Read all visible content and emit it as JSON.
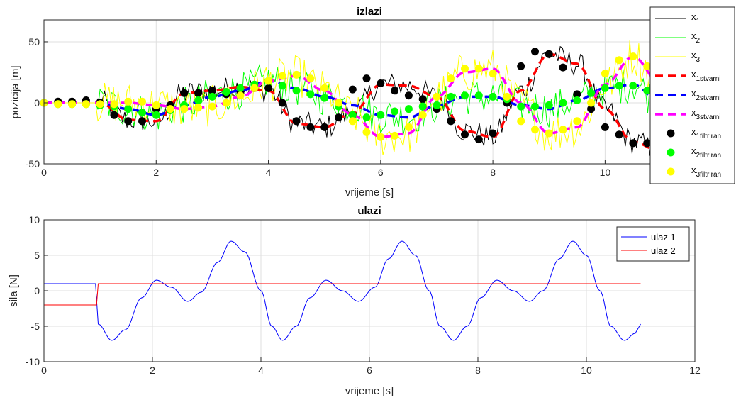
{
  "colors": {
    "x1": "#000000",
    "x2": "#00ff00",
    "x3": "#ffff00",
    "x1_true": "#ff0000",
    "x2_true": "#0000ff",
    "x3_true": "#ff00ff",
    "u1": "#0000ff",
    "u2": "#ff0000"
  },
  "chart_data": [
    {
      "type": "line",
      "title": "izlazi",
      "xlabel": "vrijeme [s]",
      "ylabel": "pozicija [m]",
      "xlim": [
        0,
        11.6
      ],
      "ylim": [
        -50,
        68
      ],
      "xticks": [
        0,
        2,
        4,
        6,
        8,
        10
      ],
      "yticks": [
        -50,
        0,
        50
      ],
      "grid": true,
      "legend_position": "top-right",
      "legend": [
        {
          "name": "x",
          "sub": "1",
          "style": "line",
          "color": "#000000"
        },
        {
          "name": "x",
          "sub": "2",
          "style": "line",
          "color": "#00ff00"
        },
        {
          "name": "x",
          "sub": "3",
          "style": "line",
          "color": "#ffff00"
        },
        {
          "name": "x",
          "sub": "1stvarni",
          "style": "dash",
          "color": "#ff0000"
        },
        {
          "name": "x",
          "sub": "2stvarni",
          "style": "dash",
          "color": "#0000ff"
        },
        {
          "name": "x",
          "sub": "3stvarni",
          "style": "dash",
          "color": "#ff00ff"
        },
        {
          "name": "x",
          "sub": "1filtriran",
          "style": "dot",
          "color": "#000000"
        },
        {
          "name": "x",
          "sub": "2filtriran",
          "style": "dot",
          "color": "#00ff00"
        },
        {
          "name": "x",
          "sub": "3filtriran",
          "style": "dot",
          "color": "#ffff00"
        }
      ],
      "series_true": {
        "t": [
          0,
          0.5,
          1,
          1.5,
          2,
          2.5,
          3,
          3.5,
          4,
          4.5,
          5,
          5.5,
          6,
          6.5,
          7,
          7.5,
          8,
          8.5,
          9,
          9.5,
          10,
          10.5,
          11
        ],
        "x1": [
          0,
          0,
          0,
          -14,
          -15,
          8,
          10,
          13,
          10,
          -17,
          -20,
          -8,
          15,
          14,
          5,
          -23,
          -28,
          10,
          40,
          32,
          -5,
          -32,
          -40
        ],
        "x2": [
          0,
          0,
          0,
          -5,
          -10,
          -2,
          5,
          10,
          18,
          12,
          5,
          -2,
          -10,
          -12,
          -2,
          5,
          5,
          -2,
          -5,
          2,
          12,
          15,
          0
        ],
        "x3": [
          0,
          0,
          0,
          0,
          -2,
          -5,
          -3,
          5,
          18,
          22,
          10,
          -10,
          -28,
          -25,
          5,
          25,
          28,
          0,
          -25,
          -20,
          15,
          38,
          15
        ]
      },
      "series_filtered": {
        "t": [
          0,
          0.25,
          0.5,
          0.75,
          1.0,
          1.25,
          1.5,
          1.75,
          2.0,
          2.25,
          2.5,
          2.75,
          3.0,
          3.25,
          3.5,
          3.75,
          4.0,
          4.25,
          4.5,
          4.75,
          5.0,
          5.25,
          5.5,
          5.75,
          6.0,
          6.25,
          6.5,
          6.75,
          7.0,
          7.25,
          7.5,
          7.75,
          8.0,
          8.25,
          8.5,
          8.75,
          9.0,
          9.25,
          9.5,
          9.75,
          10.0,
          10.25,
          10.5,
          10.75,
          11.0
        ],
        "x1": [
          0,
          1,
          1,
          2,
          0,
          -10,
          -15,
          -15,
          -5,
          -2,
          8,
          8,
          10,
          7,
          8,
          12,
          12,
          0,
          -15,
          -20,
          -20,
          -12,
          11,
          20,
          16,
          10,
          6,
          3,
          -5,
          -15,
          -26,
          -30,
          -25,
          0,
          30,
          42,
          40,
          29,
          7,
          -5,
          -20,
          -26,
          -33,
          -33,
          -28
        ],
        "x2": [
          0,
          -1,
          -1,
          -1,
          -2,
          -3,
          -5,
          -8,
          -10,
          -6,
          -2,
          2,
          5,
          9,
          12,
          15,
          18,
          14,
          10,
          7,
          4,
          -3,
          -10,
          -12,
          -10,
          -7,
          -5,
          -3,
          -2,
          5,
          6,
          6,
          5,
          3,
          -3,
          -3,
          -2,
          0,
          2,
          8,
          12,
          14,
          14,
          10,
          0
        ],
        "x3": [
          0,
          -1,
          -1,
          -1,
          -1,
          -1,
          1,
          1,
          -2,
          -5,
          -5,
          -4,
          -3,
          0,
          6,
          12,
          18,
          22,
          23,
          20,
          12,
          0,
          -15,
          -24,
          -28,
          -27,
          -20,
          -10,
          5,
          20,
          28,
          28,
          24,
          5,
          -15,
          -22,
          -25,
          -22,
          -15,
          0,
          24,
          35,
          38,
          30,
          15
        ]
      },
      "noise_amplitude": {
        "x1": 6,
        "x2": 9,
        "x3": 10
      }
    },
    {
      "type": "line",
      "title": "ulazi",
      "xlabel": "vrijeme [s]",
      "ylabel": "sila [N]",
      "xlim": [
        0,
        12
      ],
      "ylim": [
        -10,
        10
      ],
      "xticks": [
        0,
        2,
        4,
        6,
        8,
        10,
        12
      ],
      "yticks": [
        -10,
        -5,
        0,
        5,
        10
      ],
      "grid": true,
      "legend_position": "top-right",
      "legend": [
        {
          "name": "ulaz 1",
          "color": "#0000ff"
        },
        {
          "name": "ulaz 2",
          "color": "#ff0000"
        }
      ],
      "series": [
        {
          "name": "ulaz 1",
          "description": "1 for t<0.95, then 4*sin(2t-2)+3*sin(4t-4)-4.7 style oscillation",
          "t_start": 0,
          "t_end": 11,
          "points": [
            [
              0,
              1
            ],
            [
              0.95,
              1
            ],
            [
              1.0,
              -4.7
            ],
            [
              1.25,
              -7
            ],
            [
              1.5,
              -5.5
            ],
            [
              1.8,
              -1
            ],
            [
              2.07,
              1.5
            ],
            [
              2.35,
              0.5
            ],
            [
              2.65,
              -1.5
            ],
            [
              2.9,
              -0.2
            ],
            [
              3.2,
              4
            ],
            [
              3.45,
              7
            ],
            [
              3.7,
              5.5
            ],
            [
              4.0,
              0
            ],
            [
              4.2,
              -5
            ],
            [
              4.4,
              -7
            ],
            [
              4.65,
              -5
            ],
            [
              4.9,
              -1
            ],
            [
              5.2,
              1.5
            ],
            [
              5.5,
              0
            ],
            [
              5.8,
              -1.5
            ],
            [
              6.1,
              0.5
            ],
            [
              6.35,
              4.5
            ],
            [
              6.6,
              7
            ],
            [
              6.85,
              5
            ],
            [
              7.1,
              0
            ],
            [
              7.3,
              -5
            ],
            [
              7.55,
              -7
            ],
            [
              7.8,
              -5
            ],
            [
              8.05,
              -1
            ],
            [
              8.35,
              1.5
            ],
            [
              8.65,
              0
            ],
            [
              8.95,
              -1.5
            ],
            [
              9.2,
              0
            ],
            [
              9.5,
              4.5
            ],
            [
              9.75,
              7
            ],
            [
              10.0,
              5
            ],
            [
              10.25,
              0
            ],
            [
              10.45,
              -5
            ],
            [
              10.7,
              -7
            ],
            [
              10.9,
              -6
            ],
            [
              11.0,
              -4.7
            ]
          ]
        },
        {
          "name": "ulaz 2",
          "points": [
            [
              0,
              -2
            ],
            [
              0.97,
              -2
            ],
            [
              1.0,
              1
            ],
            [
              11.0,
              1
            ]
          ]
        }
      ]
    }
  ]
}
